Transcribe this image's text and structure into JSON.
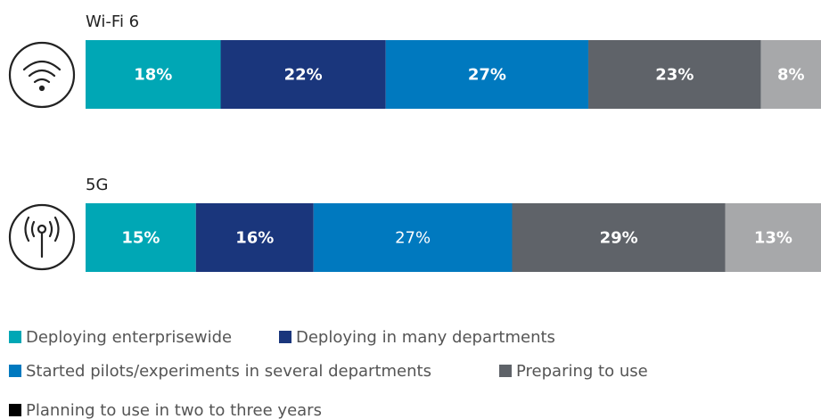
{
  "chart_data": {
    "type": "stacked-bar-horizontal",
    "categories": [
      "Wi-Fi 6",
      "5G"
    ],
    "series": [
      {
        "name": "Deploying enterprisewide",
        "color": "#00a7b5",
        "values": [
          18,
          15
        ],
        "value_labels": [
          "18%",
          "15%"
        ]
      },
      {
        "name": "Deploying in many departments",
        "color": "#1a367c",
        "values": [
          22,
          16
        ],
        "value_labels": [
          "22%",
          "16%"
        ]
      },
      {
        "name": "Started pilots/experiments in several departments",
        "color": "#0079bf",
        "values": [
          27,
          27
        ],
        "value_labels": [
          "27%",
          "27%"
        ],
        "label_bold": [
          true,
          false
        ]
      },
      {
        "name": "Preparing to use",
        "color": "#5f6369",
        "values": [
          23,
          29
        ],
        "value_labels": [
          "23%",
          "29%"
        ]
      },
      {
        "name": "Planning to use in two to three years",
        "color": "#a7a8aa",
        "legend_color": "#000000",
        "values": [
          8,
          13
        ],
        "value_labels": [
          "8%",
          "13%"
        ]
      }
    ],
    "label_color": "#ffffff"
  }
}
